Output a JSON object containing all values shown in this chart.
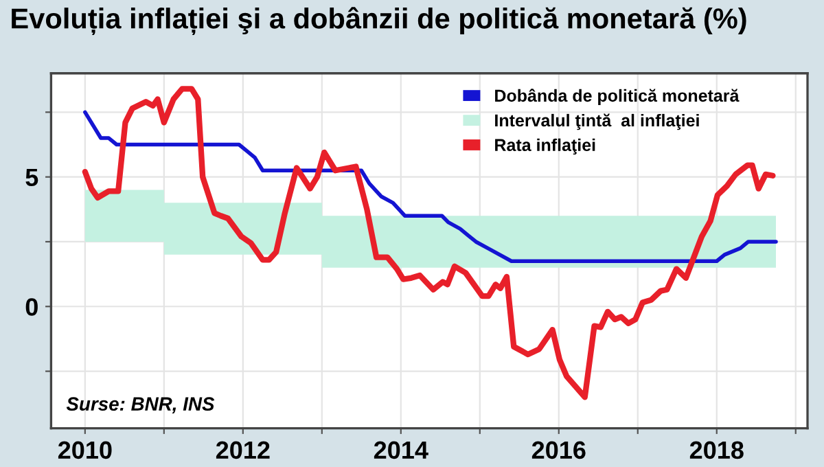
{
  "chart_data": {
    "type": "line",
    "title": "Evoluția inflației şi a dobânzii de politică monetară (%)",
    "xlim": [
      2009.57,
      2019.15
    ],
    "ylim": [
      -4.7,
      9.0
    ],
    "xticks": [
      2010,
      {
        "value": 2011,
        "label": null
      },
      2012,
      {
        "value": 2013,
        "label": null
      },
      2014,
      {
        "value": 2015,
        "label": null
      },
      2016,
      {
        "value": 2017,
        "label": null
      },
      2018,
      {
        "value": 2019,
        "label": null
      }
    ],
    "yticks": [
      {
        "value": -2.5,
        "label": null
      },
      0,
      {
        "value": 2.5,
        "label": null
      },
      5,
      {
        "value": 7.5,
        "label": null
      }
    ],
    "grid": true,
    "legend": "top right",
    "line_style": "solid",
    "marker": "none",
    "annotations": [
      "Surse: BNR, INS"
    ],
    "series": [
      {
        "name": "Dobânda de politică monetară",
        "color": "#1414d2",
        "x": [
          2010,
          2010.2,
          2010.3,
          2010.4,
          2011.95,
          2012.05,
          2012.15,
          2012.25,
          2013.5,
          2013.6,
          2013.75,
          2013.9,
          2014.05,
          2014.52,
          2014.6,
          2014.75,
          2014.85,
          2014.95,
          2015.1,
          2015.4,
          2018.0,
          2018.1,
          2018.3,
          2018.4,
          2018.75
        ],
        "values": [
          7.5,
          6.5,
          6.5,
          6.25,
          6.25,
          6.0,
          5.75,
          5.25,
          5.25,
          4.75,
          4.25,
          4.0,
          3.5,
          3.5,
          3.25,
          3.0,
          2.75,
          2.5,
          2.25,
          1.75,
          1.75,
          2.0,
          2.25,
          2.5,
          2.5
        ]
      },
      {
        "name": "Intervalul ţintă  al inflaţiei",
        "type": "area",
        "color": "#c4f1e1",
        "x": [
          2010,
          2011,
          2011,
          2013,
          2013,
          2018.75
        ],
        "values": [
          null,
          null,
          null,
          null,
          null,
          null
        ],
        "upper": [
          4.5,
          4.5,
          4.0,
          4.0,
          3.5,
          3.5
        ],
        "lower": [
          2.5,
          2.5,
          2.0,
          2.0,
          1.5,
          1.5
        ]
      },
      {
        "name": "Rata inflaţiei",
        "color": "#e8202a",
        "x": [
          2010,
          2010.08,
          2010.16,
          2010.3,
          2010.42,
          2010.51,
          2010.6,
          2010.77,
          2010.86,
          2010.92,
          2011.0,
          2011.12,
          2011.23,
          2011.35,
          2011.43,
          2011.49,
          2011.64,
          2011.72,
          2011.81,
          2011.98,
          2012.1,
          2012.25,
          2012.33,
          2012.42,
          2012.53,
          2012.68,
          2012.85,
          2012.94,
          2013.03,
          2013.17,
          2013.43,
          2013.57,
          2013.69,
          2013.83,
          2013.95,
          2014.03,
          2014.13,
          2014.24,
          2014.41,
          2014.53,
          2014.59,
          2014.68,
          2014.82,
          2015.03,
          2015.11,
          2015.2,
          2015.26,
          2015.34,
          2015.43,
          2015.61,
          2015.75,
          2015.92,
          2016.01,
          2016.1,
          2016.33,
          2016.45,
          2016.53,
          2016.62,
          2016.71,
          2016.79,
          2016.88,
          2016.97,
          2017.06,
          2017.17,
          2017.29,
          2017.37,
          2017.49,
          2017.61,
          2017.81,
          2017.92,
          2018.01,
          2018.13,
          2018.24,
          2018.39,
          2018.45,
          2018.53,
          2018.62,
          2018.71
        ],
        "values": [
          5.2,
          4.55,
          4.2,
          4.45,
          4.45,
          7.1,
          7.65,
          7.9,
          7.75,
          8.0,
          7.1,
          8.0,
          8.4,
          8.4,
          8.0,
          5.0,
          3.6,
          3.5,
          3.4,
          2.7,
          2.45,
          1.8,
          1.8,
          2.1,
          3.6,
          5.35,
          4.55,
          5.0,
          5.95,
          5.25,
          5.4,
          3.75,
          1.9,
          1.9,
          1.45,
          1.05,
          1.1,
          1.2,
          0.65,
          0.95,
          0.85,
          1.55,
          1.3,
          0.4,
          0.4,
          0.85,
          0.7,
          1.15,
          -1.55,
          -1.85,
          -1.65,
          -0.9,
          -2.05,
          -2.7,
          -3.5,
          -0.75,
          -0.8,
          -0.2,
          -0.5,
          -0.4,
          -0.65,
          -0.5,
          0.15,
          0.25,
          0.6,
          0.65,
          1.45,
          1.1,
          2.7,
          3.3,
          4.3,
          4.65,
          5.1,
          5.45,
          5.45,
          4.55,
          5.1,
          5.05
        ]
      }
    ]
  }
}
